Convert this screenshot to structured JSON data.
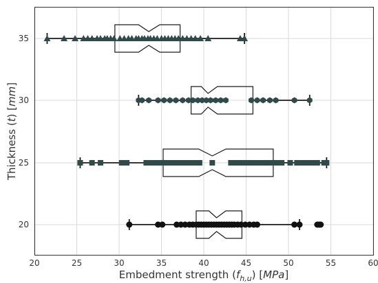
{
  "chart_data": {
    "type": "boxplot",
    "orientation": "horizontal",
    "notched": true,
    "xlabel_parts": [
      "Embedment strength (",
      "f",
      "h,u",
      ") [",
      "MPa",
      "]"
    ],
    "ylabel_parts": [
      "Thickness (",
      "t",
      ") [",
      "mm",
      "]"
    ],
    "xlim": [
      20,
      60
    ],
    "xticks": [
      "20",
      "25",
      "30",
      "35",
      "40",
      "45",
      "50",
      "55",
      "60"
    ],
    "grid": true,
    "series": [
      {
        "category": "35",
        "marker": "triangle",
        "color": "#2f4a4a",
        "whisker_low": 21.5,
        "q1": 29.5,
        "median": 33.5,
        "q3": 37.2,
        "whisker_high": 44.8,
        "notch_low": 32.3,
        "notch_high": 34.8,
        "points": [
          21.5,
          23.5,
          24.8,
          25.8,
          26.3,
          26.8,
          27.4,
          27.8,
          28.3,
          28.6,
          29.0,
          29.4,
          30.1,
          30.6,
          31.1,
          31.5,
          32.0,
          32.3,
          32.7,
          33.0,
          33.4,
          33.7,
          34.1,
          34.5,
          35.0,
          35.4,
          35.8,
          36.2,
          36.6,
          37.0,
          37.5,
          38.0,
          38.5,
          39.0,
          39.6,
          40.5,
          44.3,
          44.8
        ]
      },
      {
        "category": "30",
        "marker": "hexagon",
        "color": "#2f4a4a",
        "whisker_low": 32.3,
        "q1": 38.5,
        "median": 40.5,
        "q3": 45.8,
        "whisker_high": 52.5,
        "notch_low": 39.7,
        "notch_high": 41.6,
        "points": [
          32.3,
          32.7,
          33.5,
          34.6,
          35.3,
          36.0,
          36.7,
          37.5,
          38.2,
          38.7,
          39.3,
          39.8,
          40.3,
          40.8,
          41.4,
          42.0,
          42.6,
          45.6,
          46.3,
          47.0,
          47.8,
          48.5,
          50.7,
          52.5
        ]
      },
      {
        "category": "25",
        "marker": "square",
        "color": "#2f4a4a",
        "whisker_low": 25.4,
        "q1": 35.2,
        "median": 41.0,
        "q3": 48.2,
        "whisker_high": 54.5,
        "notch_low": 39.4,
        "notch_high": 42.6,
        "points": [
          25.4,
          25.4,
          26.8,
          27.8,
          30.3,
          30.9,
          33.2,
          33.8,
          34.4,
          34.9,
          35.5,
          36.0,
          36.6,
          37.2,
          37.8,
          38.4,
          38.9,
          39.5,
          41.0,
          43.2,
          43.8,
          44.4,
          45.0,
          45.6,
          46.2,
          46.8,
          47.4,
          48.0,
          48.6,
          49.2,
          50.2,
          51.0,
          51.6,
          52.2,
          52.8,
          53.4,
          54.2,
          54.5
        ]
      },
      {
        "category": "20",
        "marker": "circle",
        "color": "#111111",
        "whisker_low": 31.2,
        "q1": 39.1,
        "median": 41.5,
        "q3": 44.5,
        "whisker_high": 51.3,
        "notch_low": 40.6,
        "notch_high": 42.6,
        "points": [
          31.2,
          34.6,
          35.1,
          36.8,
          37.3,
          37.8,
          38.3,
          38.7,
          39.1,
          39.4,
          39.7,
          40.0,
          40.3,
          40.6,
          40.9,
          41.2,
          41.5,
          41.8,
          42.1,
          42.4,
          42.7,
          43.0,
          43.3,
          43.6,
          44.0,
          44.4,
          44.9,
          45.4,
          45.9,
          46.3,
          50.7,
          51.3,
          53.4,
          53.6,
          53.8
        ]
      }
    ]
  }
}
